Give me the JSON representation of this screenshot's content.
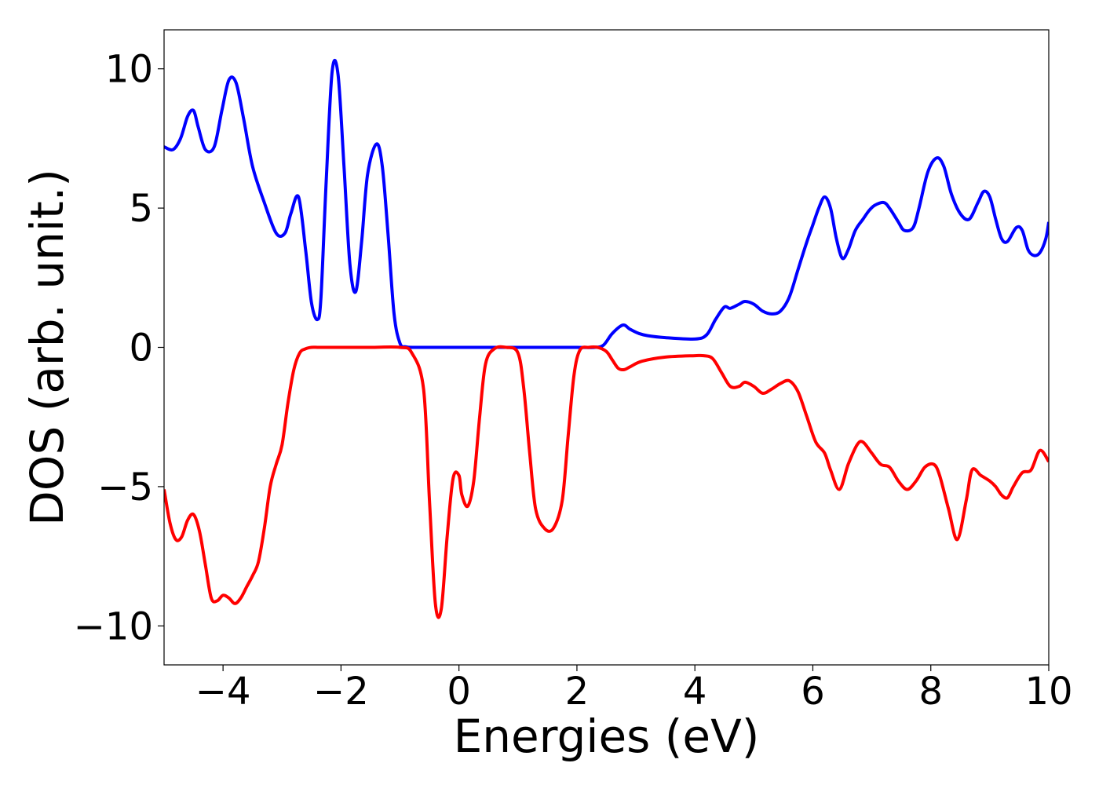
{
  "chart_data": {
    "type": "line",
    "xlabel": "Energies (eV)",
    "ylabel": "DOS (arb. unit.)",
    "xlim": [
      -5,
      10
    ],
    "ylim": [
      -11.4,
      11.4
    ],
    "xticks": [
      -4,
      -2,
      0,
      2,
      4,
      6,
      8,
      10
    ],
    "xtick_labels": [
      "−4",
      "−2",
      "0",
      "2",
      "4",
      "6",
      "8",
      "10"
    ],
    "yticks": [
      10,
      5,
      0,
      -5,
      -10
    ],
    "ytick_labels": [
      "10",
      "5",
      "0",
      "−5",
      "−10"
    ],
    "grid": false,
    "legend": "none",
    "series": [
      {
        "color": "#0000ff",
        "x": [
          -5.0,
          -4.85,
          -4.72,
          -4.6,
          -4.5,
          -4.42,
          -4.3,
          -4.15,
          -4.02,
          -3.9,
          -3.78,
          -3.65,
          -3.5,
          -3.3,
          -3.1,
          -2.95,
          -2.85,
          -2.72,
          -2.6,
          -2.5,
          -2.4,
          -2.34,
          -2.25,
          -2.15,
          -2.05,
          -1.95,
          -1.85,
          -1.75,
          -1.65,
          -1.55,
          -1.4,
          -1.3,
          -1.2,
          -1.1,
          -1.0,
          -0.9,
          -0.75,
          -0.6,
          -0.4,
          0.0,
          0.5,
          1.0,
          1.5,
          2.0,
          2.3,
          2.45,
          2.6,
          2.78,
          2.9,
          3.05,
          3.2,
          3.5,
          4.0,
          4.2,
          4.35,
          4.5,
          4.6,
          4.75,
          4.85,
          5.0,
          5.15,
          5.3,
          5.45,
          5.6,
          5.75,
          5.9,
          6.0,
          6.1,
          6.2,
          6.3,
          6.4,
          6.5,
          6.6,
          6.72,
          6.85,
          6.95,
          7.05,
          7.2,
          7.3,
          7.45,
          7.55,
          7.7,
          7.8,
          7.95,
          8.1,
          8.22,
          8.35,
          8.5,
          8.65,
          8.8,
          8.9,
          9.0,
          9.1,
          9.2,
          9.3,
          9.45,
          9.55,
          9.65,
          9.75,
          9.85,
          9.95,
          10.0
        ],
        "y": [
          7.2,
          7.1,
          7.5,
          8.3,
          8.5,
          7.9,
          7.1,
          7.2,
          8.5,
          9.6,
          9.5,
          8.2,
          6.5,
          5.2,
          4.1,
          4.1,
          4.8,
          5.4,
          3.5,
          1.6,
          1.0,
          1.8,
          6.0,
          9.9,
          9.8,
          6.5,
          3.0,
          2.0,
          3.8,
          6.2,
          7.3,
          6.5,
          4.0,
          1.2,
          0.15,
          0.02,
          0.0,
          0.0,
          0.0,
          0.0,
          0.0,
          0.0,
          0.0,
          0.0,
          0.0,
          0.08,
          0.5,
          0.8,
          0.65,
          0.5,
          0.42,
          0.35,
          0.3,
          0.45,
          1.0,
          1.45,
          1.4,
          1.55,
          1.65,
          1.55,
          1.3,
          1.2,
          1.3,
          1.8,
          2.8,
          3.8,
          4.4,
          5.0,
          5.4,
          5.0,
          3.9,
          3.2,
          3.5,
          4.2,
          4.6,
          4.9,
          5.1,
          5.2,
          5.0,
          4.5,
          4.2,
          4.3,
          5.0,
          6.3,
          6.8,
          6.5,
          5.5,
          4.8,
          4.6,
          5.2,
          5.6,
          5.4,
          4.6,
          3.9,
          3.8,
          4.3,
          4.2,
          3.5,
          3.3,
          3.4,
          3.9,
          4.5
        ]
      },
      {
        "color": "#ff0000",
        "x": [
          -5.0,
          -4.9,
          -4.8,
          -4.7,
          -4.6,
          -4.5,
          -4.4,
          -4.3,
          -4.2,
          -4.1,
          -4.0,
          -3.9,
          -3.8,
          -3.7,
          -3.6,
          -3.5,
          -3.4,
          -3.3,
          -3.2,
          -3.1,
          -3.0,
          -2.9,
          -2.8,
          -2.7,
          -2.6,
          -2.5,
          -2.4,
          -2.3,
          -2.0,
          -1.5,
          -1.0,
          -0.8,
          -0.6,
          -0.5,
          -0.4,
          -0.3,
          -0.2,
          -0.1,
          0.0,
          0.05,
          0.15,
          0.25,
          0.35,
          0.45,
          0.6,
          0.8,
          1.0,
          1.1,
          1.2,
          1.3,
          1.45,
          1.6,
          1.75,
          1.85,
          1.95,
          2.05,
          2.2,
          2.35,
          2.5,
          2.6,
          2.7,
          2.8,
          2.9,
          3.1,
          3.5,
          4.0,
          4.15,
          4.3,
          4.45,
          4.6,
          4.75,
          4.85,
          5.0,
          5.15,
          5.3,
          5.45,
          5.6,
          5.75,
          5.9,
          6.05,
          6.2,
          6.3,
          6.45,
          6.6,
          6.75,
          6.85,
          7.0,
          7.15,
          7.3,
          7.45,
          7.6,
          7.75,
          7.9,
          8.05,
          8.15,
          8.3,
          8.45,
          8.6,
          8.7,
          8.85,
          9.0,
          9.1,
          9.2,
          9.3,
          9.4,
          9.55,
          9.7,
          9.85,
          10.0
        ],
        "y": [
          -5.1,
          -6.3,
          -6.9,
          -6.8,
          -6.2,
          -6.0,
          -6.6,
          -7.8,
          -9.0,
          -9.1,
          -8.9,
          -9.0,
          -9.2,
          -9.0,
          -8.6,
          -8.2,
          -7.7,
          -6.5,
          -5.0,
          -4.2,
          -3.5,
          -2.0,
          -0.8,
          -0.2,
          -0.05,
          0.0,
          0.0,
          0.0,
          0.0,
          0.0,
          0.0,
          -0.2,
          -1.5,
          -5.5,
          -9.2,
          -9.4,
          -6.8,
          -4.7,
          -4.6,
          -5.3,
          -5.7,
          -4.8,
          -2.5,
          -0.6,
          -0.05,
          0.0,
          -0.2,
          -1.5,
          -3.8,
          -5.8,
          -6.5,
          -6.5,
          -5.5,
          -3.2,
          -1.0,
          -0.1,
          -0.0,
          -0.0,
          -0.15,
          -0.45,
          -0.75,
          -0.8,
          -0.7,
          -0.5,
          -0.35,
          -0.3,
          -0.3,
          -0.4,
          -0.9,
          -1.4,
          -1.4,
          -1.25,
          -1.4,
          -1.65,
          -1.5,
          -1.3,
          -1.2,
          -1.6,
          -2.5,
          -3.4,
          -3.8,
          -4.4,
          -5.1,
          -4.2,
          -3.5,
          -3.4,
          -3.8,
          -4.2,
          -4.3,
          -4.8,
          -5.1,
          -4.8,
          -4.3,
          -4.2,
          -4.6,
          -5.8,
          -6.9,
          -5.5,
          -4.4,
          -4.6,
          -4.8,
          -5.0,
          -5.3,
          -5.4,
          -5.0,
          -4.5,
          -4.4,
          -3.7,
          -4.1
        ]
      }
    ]
  }
}
